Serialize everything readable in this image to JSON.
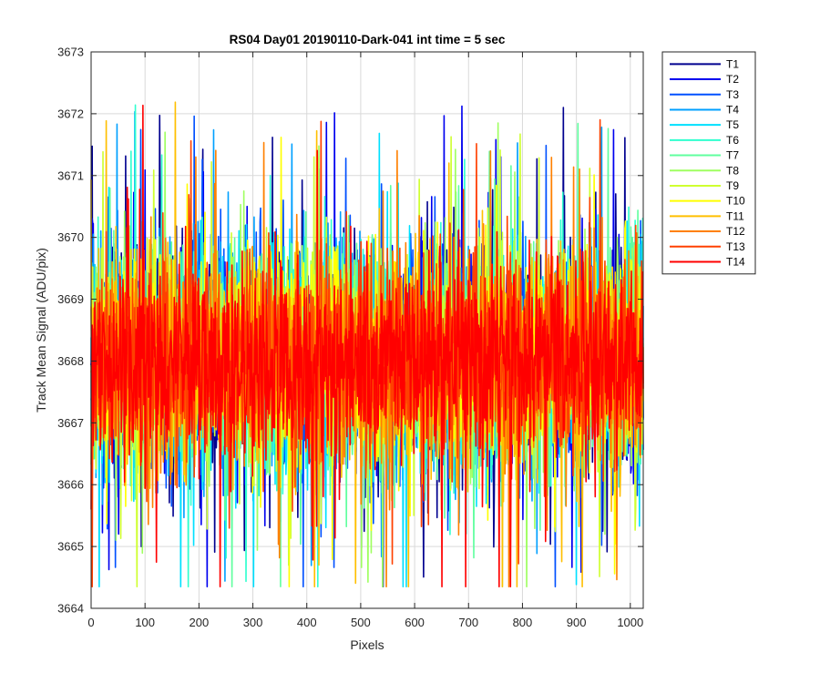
{
  "chart_data": {
    "type": "line",
    "title": "RS04 Day01 20190110-Dark-041 int time = 5 sec",
    "xlabel": "Pixels",
    "ylabel": "Track Mean Signal (ADU/pix)",
    "xlim": [
      0,
      1024
    ],
    "ylim": [
      3664,
      3673
    ],
    "xticks": [
      0,
      100,
      200,
      300,
      400,
      500,
      600,
      700,
      800,
      900,
      1000
    ],
    "yticks": [
      3664,
      3665,
      3666,
      3667,
      3668,
      3669,
      3670,
      3671,
      3672,
      3673
    ],
    "grid": true,
    "legend_position": "outside-top-right",
    "noise_model": {
      "n_points": 1024,
      "mean": 3668.0,
      "core_sd": 0.9,
      "min": 3664.35,
      "max": 3672.45
    },
    "series": [
      {
        "name": "T1",
        "color": "#00008f"
      },
      {
        "name": "T2",
        "color": "#0000ef"
      },
      {
        "name": "T3",
        "color": "#0050ff"
      },
      {
        "name": "T4",
        "color": "#00a0ff"
      },
      {
        "name": "T5",
        "color": "#00e0ff"
      },
      {
        "name": "T6",
        "color": "#30ffcf"
      },
      {
        "name": "T7",
        "color": "#60ff9f"
      },
      {
        "name": "T8",
        "color": "#9fff60"
      },
      {
        "name": "T9",
        "color": "#cfff30"
      },
      {
        "name": "T10",
        "color": "#ffff00"
      },
      {
        "name": "T11",
        "color": "#ffbf00"
      },
      {
        "name": "T12",
        "color": "#ff8000"
      },
      {
        "name": "T13",
        "color": "#ff4000"
      },
      {
        "name": "T14",
        "color": "#ff0000"
      }
    ]
  }
}
